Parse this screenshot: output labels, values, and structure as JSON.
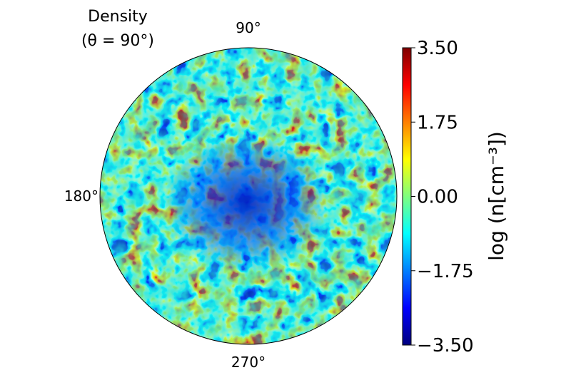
{
  "chart_data": {
    "type": "heatmap",
    "projection": "polar",
    "title": "Density",
    "subtitle": "(θ = 90°)",
    "angular_tick_labels": [
      "90°",
      "180°",
      "270°"
    ],
    "colorbar": {
      "label": "log (n[cm⁻³])",
      "range": [
        -3.5,
        3.5
      ],
      "ticks": [
        "3.50",
        "1.75",
        "0.00",
        "−1.75",
        "−3.50"
      ],
      "tick_values": [
        3.5,
        1.75,
        0.0,
        -1.75,
        -3.5
      ],
      "colormap": "jet"
    },
    "colormap_stops": [
      "#00007f",
      "#0000ff",
      "#007fff",
      "#00ffff",
      "#7fff7f",
      "#ffff00",
      "#ff7f00",
      "#ff0000",
      "#7f0000"
    ],
    "grid": false
  }
}
